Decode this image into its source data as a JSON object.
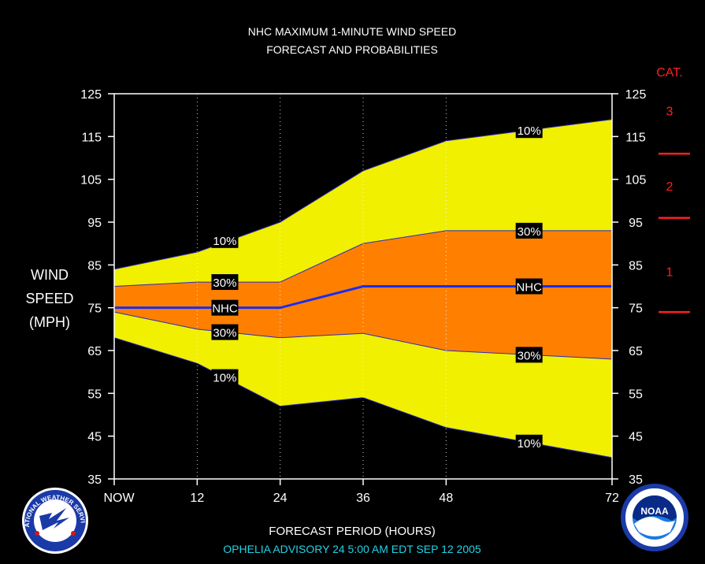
{
  "title": "NHC MAXIMUM 1-MINUTE WIND SPEED",
  "subtitle": "FORECAST AND PROBABILITIES",
  "advisory": "OPHELIA   ADVISORY  24 5:00  AM  EDT  SEP  12  2005",
  "logos": {
    "left": "NATIONAL WEATHER SERVICE",
    "right": "NOAA"
  },
  "chart_data": {
    "type": "area",
    "title": "NHC MAXIMUM 1-MINUTE WIND SPEED",
    "subtitle": "FORECAST AND PROBABILITIES",
    "xlabel": "FORECAST PERIOD (HOURS)",
    "ylabel": [
      "WIND",
      "SPEED",
      "(MPH)"
    ],
    "xlim": [
      0,
      72
    ],
    "ylim": [
      35,
      125
    ],
    "x": [
      0,
      12,
      24,
      36,
      48,
      72
    ],
    "x_tick_labels": [
      "NOW",
      "12",
      "24",
      "36",
      "48",
      "72"
    ],
    "y_ticks": [
      35,
      45,
      55,
      65,
      75,
      85,
      95,
      105,
      115,
      125
    ],
    "grid": "vertical dotted",
    "series": [
      {
        "name": "10%",
        "role": "upper",
        "values": [
          84,
          88,
          95,
          107,
          114,
          119
        ],
        "color": "#f0f000"
      },
      {
        "name": "30%",
        "role": "upper",
        "values": [
          80,
          81,
          81,
          90,
          93,
          93
        ],
        "color": "#ff8000"
      },
      {
        "name": "NHC",
        "role": "forecast",
        "values": [
          75,
          75,
          75,
          80,
          80,
          80
        ],
        "color": "#1a2cf0"
      },
      {
        "name": "30%",
        "role": "lower",
        "values": [
          74,
          70,
          68,
          69,
          65,
          63
        ],
        "color": "#ff8000"
      },
      {
        "name": "10%",
        "role": "lower",
        "values": [
          68,
          62,
          52,
          54,
          47,
          40
        ],
        "color": "#f0f000"
      }
    ],
    "labels": [
      {
        "text": "10%",
        "x": 16,
        "y": 90.8
      },
      {
        "text": "30%",
        "x": 16,
        "y": 81
      },
      {
        "text": "NHC",
        "x": 16,
        "y": 75
      },
      {
        "text": "30%",
        "x": 16,
        "y": 69.3
      },
      {
        "text": "10%",
        "x": 16,
        "y": 58.8
      },
      {
        "text": "10%",
        "x": 60,
        "y": 116.5
      },
      {
        "text": "30%",
        "x": 60,
        "y": 93
      },
      {
        "text": "NHC",
        "x": 60,
        "y": 80
      },
      {
        "text": "30%",
        "x": 60,
        "y": 64
      },
      {
        "text": "10%",
        "x": 60,
        "y": 43.5
      }
    ],
    "categories_scale": {
      "label": "CAT.",
      "color": "#ff2020",
      "items": [
        {
          "text": "3",
          "y": 121
        },
        {
          "text": "2",
          "y": 103.5
        },
        {
          "text": "1",
          "y": 83.5
        }
      ],
      "boundaries": [
        111,
        96,
        74
      ]
    }
  }
}
